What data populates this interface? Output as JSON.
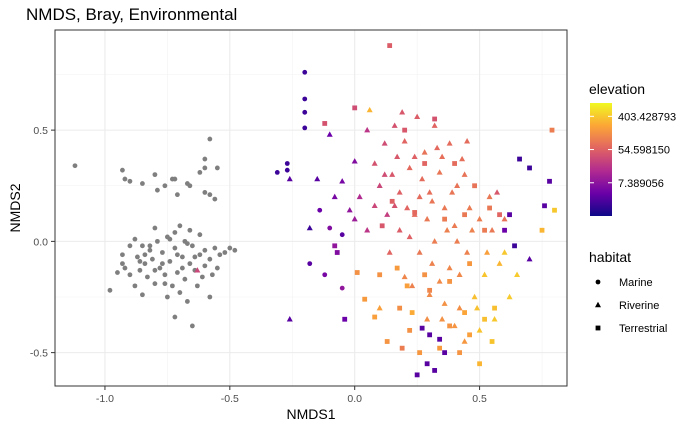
{
  "chart_data": {
    "type": "scatter",
    "title": "NMDS, Bray, Environmental",
    "xlabel": "NMDS1",
    "ylabel": "NMDS2",
    "xlim": [
      -1.2,
      0.85
    ],
    "ylim": [
      -0.65,
      0.95
    ],
    "x_ticks": [
      -1.0,
      -0.5,
      0.0,
      0.5
    ],
    "x_tick_labels": [
      "-1.0",
      "-0.5",
      "0.0",
      "0.5"
    ],
    "y_ticks": [
      -0.5,
      0.0,
      0.5
    ],
    "y_tick_labels": [
      "-0.5",
      "0.0",
      "0.5"
    ],
    "grid": true,
    "missing_color": "#7f7f7f",
    "color_legend": {
      "title": "elevation",
      "scale": "log",
      "labels": [
        "403.428793",
        "54.598150",
        "7.389056"
      ],
      "label_values": [
        403.428793,
        54.59815,
        7.389056
      ],
      "range": [
        1,
        900
      ],
      "gradient": [
        "#0d0887",
        "#6a00a8",
        "#b12a90",
        "#e16462",
        "#fca636",
        "#f0f921"
      ]
    },
    "shape_legend": {
      "title": "habitat",
      "entries": [
        {
          "label": "Marine",
          "shape": "circle"
        },
        {
          "label": "Riverine",
          "shape": "triangle"
        },
        {
          "label": "Terrestrial",
          "shape": "square"
        }
      ]
    },
    "series": [
      {
        "habitat": "Marine",
        "elevation_missing": true,
        "points": [
          [
            -1.12,
            0.34
          ],
          [
            -0.93,
            0.32
          ],
          [
            -0.92,
            0.28
          ],
          [
            -0.9,
            0.27
          ],
          [
            -0.85,
            0.26
          ],
          [
            -0.8,
            0.3
          ],
          [
            -0.76,
            0.25
          ],
          [
            -0.73,
            0.28
          ],
          [
            -0.71,
            0.21
          ],
          [
            -0.67,
            0.26
          ],
          [
            -0.66,
            0.25
          ],
          [
            -0.62,
            0.31
          ],
          [
            -0.6,
            0.22
          ],
          [
            -0.58,
            0.21
          ],
          [
            -0.56,
            0.19
          ],
          [
            -0.6,
            0.33
          ],
          [
            -0.58,
            0.46
          ],
          [
            -0.55,
            0.33
          ],
          [
            -0.6,
            0.37
          ],
          [
            -0.79,
            0.23
          ],
          [
            -0.72,
            0.28
          ],
          [
            -0.98,
            -0.22
          ],
          [
            -0.95,
            -0.14
          ],
          [
            -0.93,
            -0.06
          ],
          [
            -0.92,
            -0.12
          ],
          [
            -0.9,
            -0.15
          ],
          [
            -0.9,
            -0.02
          ],
          [
            -0.88,
            -0.2
          ],
          [
            -0.87,
            -0.07
          ],
          [
            -0.86,
            -0.13
          ],
          [
            -0.85,
            -0.02
          ],
          [
            -0.85,
            -0.24
          ],
          [
            -0.84,
            -0.1
          ],
          [
            -0.83,
            -0.16
          ],
          [
            -0.82,
            -0.04
          ],
          [
            -0.81,
            -0.08
          ],
          [
            -0.8,
            -0.19
          ],
          [
            -0.8,
            0.06
          ],
          [
            -0.79,
            0.0
          ],
          [
            -0.78,
            -0.12
          ],
          [
            -0.77,
            -0.05
          ],
          [
            -0.76,
            -0.15
          ],
          [
            -0.75,
            -0.25
          ],
          [
            -0.75,
            0.02
          ],
          [
            -0.74,
            -0.09
          ],
          [
            -0.73,
            -0.2
          ],
          [
            -0.72,
            0.04
          ],
          [
            -0.72,
            -0.03
          ],
          [
            -0.71,
            -0.14
          ],
          [
            -0.7,
            -0.23
          ],
          [
            -0.7,
            0.07
          ],
          [
            -0.69,
            -0.07
          ],
          [
            -0.68,
            0.0
          ],
          [
            -0.68,
            -0.17
          ],
          [
            -0.67,
            -0.27
          ],
          [
            -0.66,
            -0.1
          ],
          [
            -0.66,
            0.05
          ],
          [
            -0.65,
            -0.02
          ],
          [
            -0.64,
            -0.13
          ],
          [
            -0.63,
            -0.2
          ],
          [
            -0.62,
            0.03
          ],
          [
            -0.62,
            -0.06
          ],
          [
            -0.6,
            -0.11
          ],
          [
            -0.6,
            -0.04
          ],
          [
            -0.58,
            -0.08
          ],
          [
            -0.57,
            -0.15
          ],
          [
            -0.56,
            -0.03
          ],
          [
            -0.55,
            -0.12
          ],
          [
            -0.54,
            -0.06
          ],
          [
            -0.52,
            -0.05
          ],
          [
            -0.5,
            -0.03
          ],
          [
            -0.48,
            -0.04
          ],
          [
            -0.58,
            -0.25
          ],
          [
            -0.72,
            -0.34
          ],
          [
            -0.65,
            -0.38
          ],
          [
            -0.82,
            -0.02
          ],
          [
            -0.88,
            0.01
          ],
          [
            -0.84,
            -0.06
          ],
          [
            -0.77,
            -0.1
          ],
          [
            -0.74,
            0.01
          ],
          [
            -0.71,
            -0.06
          ],
          [
            -0.69,
            -0.12
          ],
          [
            -0.76,
            -0.19
          ],
          [
            -0.8,
            -0.13
          ],
          [
            -0.86,
            -0.09
          ],
          [
            -0.93,
            -0.1
          ],
          [
            -0.61,
            -0.16
          ],
          [
            -0.64,
            -0.07
          ],
          [
            -0.67,
            -0.01
          ]
        ]
      },
      {
        "habitat": "Marine",
        "elevation_missing": false,
        "points": [
          [
            -0.2,
            0.76,
            2
          ],
          [
            -0.2,
            0.64,
            2
          ],
          [
            -0.2,
            0.58,
            2
          ],
          [
            -0.2,
            0.51,
            2
          ],
          [
            -0.27,
            0.35,
            2
          ],
          [
            -0.27,
            0.32,
            2
          ],
          [
            -0.31,
            0.31,
            2
          ],
          [
            -0.14,
            0.14,
            4
          ],
          [
            -0.1,
            0.06,
            6
          ],
          [
            -0.05,
            0.03,
            3
          ],
          [
            -0.18,
            -0.1,
            3
          ],
          [
            -0.12,
            -0.15,
            5
          ],
          [
            -0.05,
            -0.21,
            8
          ]
        ]
      },
      {
        "habitat": "Riverine",
        "elevation_missing": false,
        "points": [
          [
            -0.63,
            -0.13,
            30
          ],
          [
            -0.26,
            0.28,
            3
          ],
          [
            -0.26,
            -0.35,
            3
          ],
          [
            -0.18,
            0.06,
            2
          ],
          [
            -0.15,
            0.28,
            3
          ],
          [
            -0.1,
            0.48,
            4
          ],
          [
            -0.05,
            0.27,
            5
          ],
          [
            -0.02,
            0.14,
            8
          ],
          [
            0.0,
            0.36,
            6
          ],
          [
            0.02,
            0.2,
            15
          ],
          [
            0.05,
            0.5,
            20
          ],
          [
            0.06,
            0.59,
            300
          ],
          [
            0.08,
            0.35,
            40
          ],
          [
            0.1,
            0.25,
            30
          ],
          [
            0.12,
            0.44,
            35
          ],
          [
            0.13,
            0.12,
            25
          ],
          [
            0.15,
            0.3,
            45
          ],
          [
            0.16,
            0.52,
            40
          ],
          [
            0.18,
            0.05,
            50
          ],
          [
            0.18,
            0.22,
            55
          ],
          [
            0.2,
            0.45,
            60
          ],
          [
            0.2,
            -0.16,
            120
          ],
          [
            0.22,
            0.33,
            65
          ],
          [
            0.24,
            0.12,
            70
          ],
          [
            0.25,
            0.56,
            50
          ],
          [
            0.26,
            -0.05,
            90
          ],
          [
            0.28,
            0.4,
            80
          ],
          [
            0.3,
            0.22,
            75
          ],
          [
            0.3,
            -0.24,
            130
          ],
          [
            0.32,
            0.52,
            60
          ],
          [
            0.32,
            0.0,
            100
          ],
          [
            0.34,
            0.31,
            85
          ],
          [
            0.35,
            -0.35,
            150
          ],
          [
            0.36,
            0.15,
            90
          ],
          [
            0.38,
            0.44,
            70
          ],
          [
            0.38,
            -0.12,
            120
          ],
          [
            0.4,
            0.07,
            95
          ],
          [
            0.41,
            0.25,
            80
          ],
          [
            0.42,
            -0.3,
            140
          ],
          [
            0.43,
            0.37,
            75
          ],
          [
            0.45,
            -0.05,
            110
          ],
          [
            0.46,
            0.15,
            95
          ],
          [
            0.48,
            -0.25,
            350
          ],
          [
            0.5,
            0.1,
            100
          ],
          [
            0.52,
            -0.15,
            380
          ],
          [
            0.54,
            0.2,
            90
          ],
          [
            0.56,
            -0.35,
            400
          ],
          [
            0.58,
            -0.1,
            300
          ],
          [
            0.6,
            0.1,
            80
          ],
          [
            0.62,
            -0.25,
            420
          ],
          [
            0.22,
            0.02,
            55
          ],
          [
            0.27,
            0.28,
            70
          ],
          [
            0.31,
            0.18,
            85
          ],
          [
            0.34,
            -0.18,
            130
          ],
          [
            0.37,
            0.05,
            105
          ],
          [
            0.4,
            -0.38,
            160
          ],
          [
            0.44,
            0.3,
            80
          ],
          [
            0.47,
            0.05,
            110
          ],
          [
            0.5,
            -0.4,
            380
          ],
          [
            0.53,
            -0.05,
            200
          ],
          [
            0.12,
            0.3,
            35
          ],
          [
            0.08,
            0.16,
            30
          ],
          [
            0.05,
            0.05,
            20
          ],
          [
            0.0,
            0.1,
            10
          ],
          [
            -0.08,
            0.2,
            5
          ],
          [
            0.17,
            0.38,
            45
          ],
          [
            0.21,
            0.15,
            60
          ],
          [
            0.24,
            0.38,
            55
          ],
          [
            0.29,
            0.1,
            90
          ],
          [
            0.33,
            0.42,
            65
          ],
          [
            0.36,
            -0.28,
            150
          ],
          [
            0.39,
            0.22,
            85
          ],
          [
            0.42,
            -0.15,
            125
          ],
          [
            0.45,
            0.45,
            70
          ],
          [
            0.49,
            -0.3,
            360
          ],
          [
            0.14,
            -0.05,
            60
          ],
          [
            0.16,
            0.16,
            40
          ],
          [
            0.19,
            0.58,
            45
          ],
          [
            0.23,
            -0.2,
            110
          ],
          [
            0.26,
            0.2,
            70
          ],
          [
            0.29,
            -0.35,
            140
          ],
          [
            0.31,
            -0.1,
            110
          ],
          [
            0.35,
            0.38,
            75
          ],
          [
            0.41,
            0.0,
            100
          ],
          [
            0.44,
            -0.45,
            170
          ],
          [
            0.55,
            0.05,
            90
          ],
          [
            0.6,
            -0.05,
            400
          ],
          [
            0.65,
            -0.15,
            420
          ],
          [
            0.7,
            -0.08,
            3
          ],
          [
            0.1,
            -0.3,
            200
          ],
          [
            0.57,
            0.22,
            45
          ]
        ]
      },
      {
        "habitat": "Terrestrial",
        "elevation_missing": false,
        "points": [
          [
            0.14,
            0.88,
            50
          ],
          [
            0.0,
            0.6,
            35
          ],
          [
            -0.12,
            0.53,
            40
          ],
          [
            -0.08,
            -0.02,
            8
          ],
          [
            -0.07,
            -0.05,
            6
          ],
          [
            -0.04,
            -0.35,
            4
          ],
          [
            0.01,
            -0.14,
            150
          ],
          [
            0.04,
            -0.26,
            180
          ],
          [
            0.08,
            -0.34,
            200
          ],
          [
            0.11,
            0.07,
            45
          ],
          [
            0.13,
            -0.45,
            160
          ],
          [
            0.15,
            0.18,
            55
          ],
          [
            0.18,
            -0.3,
            140
          ],
          [
            0.2,
            0.5,
            45
          ],
          [
            0.22,
            -0.4,
            150
          ],
          [
            0.24,
            0.13,
            65
          ],
          [
            0.26,
            -0.5,
            170
          ],
          [
            0.28,
            0.35,
            60
          ],
          [
            0.3,
            -0.22,
            120
          ],
          [
            0.32,
            0.55,
            40
          ],
          [
            0.34,
            -0.48,
            180
          ],
          [
            0.36,
            0.1,
            95
          ],
          [
            0.38,
            -0.38,
            160
          ],
          [
            0.4,
            0.35,
            70
          ],
          [
            0.42,
            -0.5,
            160
          ],
          [
            0.44,
            0.12,
            90
          ],
          [
            0.46,
            -0.42,
            200
          ],
          [
            0.48,
            0.25,
            80
          ],
          [
            0.5,
            -0.55,
            300
          ],
          [
            0.52,
            0.05,
            95
          ],
          [
            0.54,
            0.15,
            90
          ],
          [
            0.56,
            -0.3,
            350
          ],
          [
            0.58,
            0.12,
            60
          ],
          [
            0.6,
            0.05,
            4
          ],
          [
            0.62,
            0.12,
            3
          ],
          [
            0.64,
            -0.02,
            2
          ],
          [
            0.66,
            0.37,
            2
          ],
          [
            0.7,
            0.33,
            2
          ],
          [
            0.76,
            0.16,
            3
          ],
          [
            0.78,
            0.27,
            3
          ],
          [
            0.8,
            0.14,
            400
          ],
          [
            0.79,
            0.5,
            100
          ],
          [
            0.75,
            0.05,
            300
          ],
          [
            0.25,
            -0.6,
            3
          ],
          [
            0.29,
            -0.55,
            3
          ],
          [
            0.34,
            -0.44,
            3
          ],
          [
            0.27,
            -0.39,
            3
          ],
          [
            0.3,
            -0.42,
            3
          ],
          [
            0.36,
            -0.5,
            3
          ],
          [
            0.32,
            -0.58,
            3
          ],
          [
            0.23,
            -0.32,
            250
          ],
          [
            0.21,
            -0.2,
            200
          ],
          [
            0.17,
            -0.12,
            180
          ],
          [
            0.1,
            -0.15,
            150
          ],
          [
            0.19,
            -0.48,
            100
          ],
          [
            0.28,
            -0.15,
            150
          ],
          [
            0.38,
            -0.18,
            160
          ],
          [
            0.46,
            -0.1,
            170
          ],
          [
            0.52,
            -0.35,
            350
          ],
          [
            0.44,
            -0.32,
            220
          ],
          [
            0.55,
            -0.45,
            380
          ]
        ]
      }
    ]
  }
}
